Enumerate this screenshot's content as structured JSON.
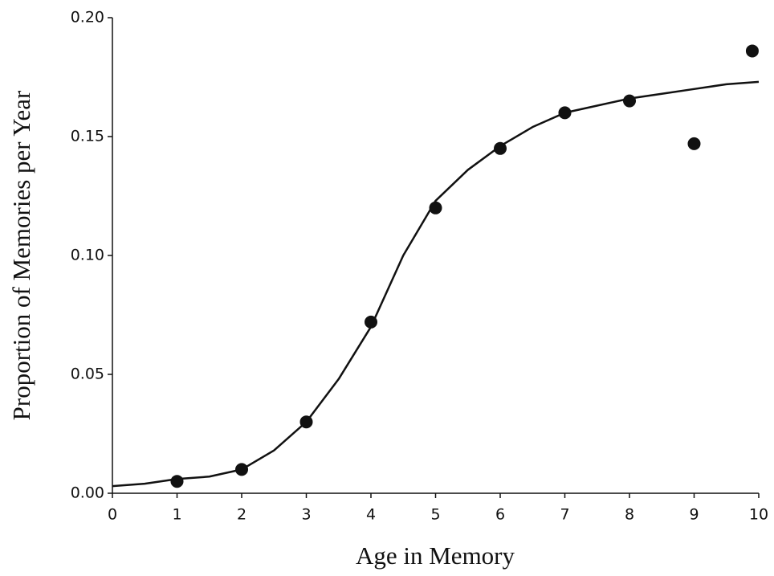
{
  "chart_data": {
    "type": "scatter",
    "xlabel": "Age in Memory",
    "ylabel": "Proportion of Memories per Year",
    "xlim": [
      0,
      10
    ],
    "xticks": [
      0,
      1,
      2,
      3,
      4,
      5,
      6,
      7,
      8,
      9,
      10
    ],
    "ylim": [
      0,
      0.2
    ],
    "yticks": [
      {
        "value": 0,
        "label": "0.00"
      },
      {
        "value": 0.05,
        "label": "0.05"
      },
      {
        "value": 0.1,
        "label": "0.10"
      },
      {
        "value": 0.15,
        "label": "0.15"
      },
      {
        "value": 0.2,
        "label": "0.20"
      }
    ],
    "grid": false,
    "series": [
      {
        "mode": "markers",
        "color": "#111111",
        "x": [
          1,
          2,
          3,
          4,
          5,
          6,
          7,
          8,
          9,
          9.9
        ],
        "values": [
          0.005,
          0.01,
          0.03,
          0.072,
          0.12,
          0.145,
          0.16,
          0.165,
          0.147,
          0.186
        ]
      },
      {
        "mode": "line",
        "color": "#111111",
        "x": [
          0,
          0.5,
          1,
          1.5,
          2,
          2.5,
          3,
          3.5,
          4,
          4.5,
          5,
          5.5,
          6,
          6.5,
          7,
          7.5,
          8,
          8.5,
          9,
          9.5,
          10
        ],
        "values": [
          0.003,
          0.004,
          0.006,
          0.007,
          0.01,
          0.018,
          0.03,
          0.048,
          0.07,
          0.1,
          0.123,
          0.136,
          0.146,
          0.154,
          0.16,
          0.163,
          0.166,
          0.168,
          0.17,
          0.172,
          0.173
        ]
      }
    ]
  }
}
